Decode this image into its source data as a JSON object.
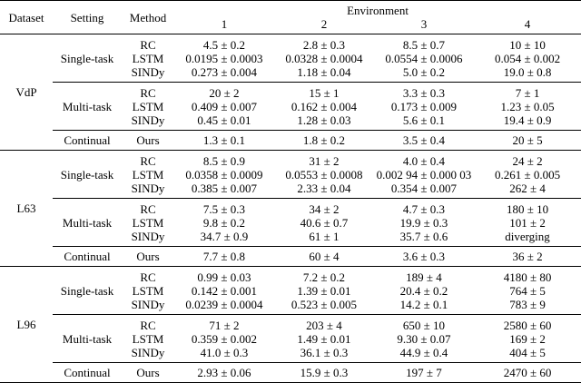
{
  "header": {
    "dataset": "Dataset",
    "setting": "Setting",
    "method": "Method",
    "environment": "Environment",
    "environments": [
      "1",
      "2",
      "3",
      "4"
    ]
  },
  "datasets": [
    {
      "name": "VdP",
      "groups": [
        {
          "setting": "Single-task",
          "rows": [
            {
              "method": "RC",
              "values": [
                "4.5 ± 0.2",
                "2.8 ± 0.3",
                "8.5 ± 0.7",
                "10 ± 10"
              ]
            },
            {
              "method": "LSTM",
              "values": [
                "0.0195 ± 0.0003",
                "0.0328 ± 0.0004",
                "0.0554 ± 0.0006",
                "0.054 ± 0.002"
              ]
            },
            {
              "method": "SINDy",
              "values": [
                "0.273 ± 0.004",
                "1.18 ± 0.04",
                "5.0 ± 0.2",
                "19.0 ± 0.8"
              ]
            }
          ]
        },
        {
          "setting": "Multi-task",
          "rows": [
            {
              "method": "RC",
              "values": [
                "20 ± 2",
                "15 ± 1",
                "3.3 ± 0.3",
                "7 ± 1"
              ]
            },
            {
              "method": "LSTM",
              "values": [
                "0.409 ± 0.007",
                "0.162 ± 0.004",
                "0.173 ± 0.009",
                "1.23 ± 0.05"
              ]
            },
            {
              "method": "SINDy",
              "values": [
                "0.45 ± 0.01",
                "1.28 ± 0.03",
                "5.6 ± 0.1",
                "19.4 ± 0.9"
              ]
            }
          ]
        },
        {
          "setting": "Continual",
          "rows": [
            {
              "method": "Ours",
              "values": [
                "1.3 ± 0.1",
                "1.8 ± 0.2",
                "3.5 ± 0.4",
                "20 ± 5"
              ]
            }
          ]
        }
      ]
    },
    {
      "name": "L63",
      "groups": [
        {
          "setting": "Single-task",
          "rows": [
            {
              "method": "RC",
              "values": [
                "8.5 ± 0.9",
                "31 ± 2",
                "4.0 ± 0.4",
                "24 ± 2"
              ]
            },
            {
              "method": "LSTM",
              "values": [
                "0.0358 ± 0.0009",
                "0.0553 ± 0.0008",
                "0.002 94 ± 0.000 03",
                "0.261 ± 0.005"
              ]
            },
            {
              "method": "SINDy",
              "values": [
                "0.385 ± 0.007",
                "2.33 ± 0.04",
                "0.354 ± 0.007",
                "262 ± 4"
              ]
            }
          ]
        },
        {
          "setting": "Multi-task",
          "rows": [
            {
              "method": "RC",
              "values": [
                "7.5 ± 0.3",
                "34 ± 2",
                "4.7 ± 0.3",
                "180 ± 10"
              ]
            },
            {
              "method": "LSTM",
              "values": [
                "9.8 ± 0.2",
                "40.6 ± 0.7",
                "19.9 ± 0.3",
                "101 ± 2"
              ]
            },
            {
              "method": "SINDy",
              "values": [
                "34.7 ± 0.9",
                "61 ± 1",
                "35.7 ± 0.6",
                "diverging"
              ]
            }
          ]
        },
        {
          "setting": "Continual",
          "rows": [
            {
              "method": "Ours",
              "values": [
                "7.7 ± 0.8",
                "60 ± 4",
                "3.6 ± 0.3",
                "36 ± 2"
              ]
            }
          ]
        }
      ]
    },
    {
      "name": "L96",
      "groups": [
        {
          "setting": "Single-task",
          "rows": [
            {
              "method": "RC",
              "values": [
                "0.99 ± 0.03",
                "7.2 ± 0.2",
                "189 ± 4",
                "4180 ± 80"
              ]
            },
            {
              "method": "LSTM",
              "values": [
                "0.142 ± 0.001",
                "1.39 ± 0.01",
                "20.4 ± 0.2",
                "764 ± 5"
              ]
            },
            {
              "method": "SINDy",
              "values": [
                "0.0239 ± 0.0004",
                "0.523 ± 0.005",
                "14.2 ± 0.1",
                "783 ± 9"
              ]
            }
          ]
        },
        {
          "setting": "Multi-task",
          "rows": [
            {
              "method": "RC",
              "values": [
                "71 ± 2",
                "203 ± 4",
                "650 ± 10",
                "2580 ± 60"
              ]
            },
            {
              "method": "LSTM",
              "values": [
                "0.359 ± 0.002",
                "1.49 ± 0.01",
                "9.30 ± 0.07",
                "169 ± 2"
              ]
            },
            {
              "method": "SINDy",
              "values": [
                "41.0 ± 0.3",
                "36.1 ± 0.3",
                "44.9 ± 0.4",
                "404 ± 5"
              ]
            }
          ]
        },
        {
          "setting": "Continual",
          "rows": [
            {
              "method": "Ours",
              "values": [
                "2.93 ± 0.06",
                "15.9 ± 0.3",
                "197 ± 7",
                "2470 ± 60"
              ]
            }
          ]
        }
      ]
    }
  ]
}
